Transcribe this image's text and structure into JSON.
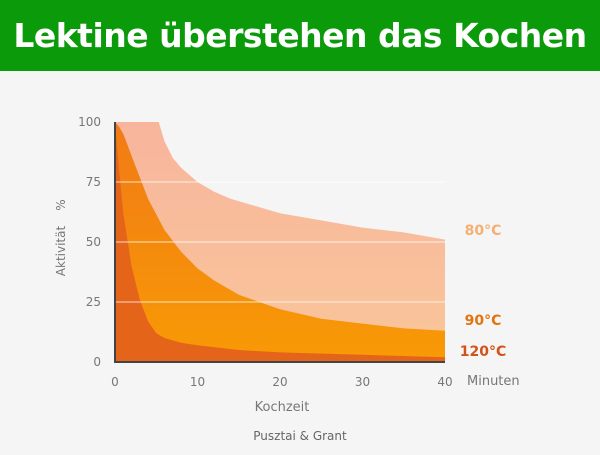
{
  "header": {
    "title": "Lektine überstehen das Kochen"
  },
  "source": "Pusztai & Grant",
  "colors": {
    "banner": "#0a9a0a",
    "s80_top": "#f8b59c",
    "s80_bottom": "#f9c69a",
    "s90_top": "#f17a16",
    "s90_bottom": "#f89a05",
    "s120": "#e4651a",
    "label80": "#f5b071",
    "label90": "#e07510",
    "label120": "#d2521b",
    "axis": "#444444",
    "text": "#777777"
  },
  "chart_data": {
    "type": "area",
    "xlabel": "Kochzeit",
    "xunit": "Minuten",
    "ylabel": "Aktivität",
    "yunit": "%",
    "xlim": [
      0,
      40
    ],
    "ylim": [
      0,
      100
    ],
    "xticks": [
      0,
      10,
      20,
      30,
      40
    ],
    "yticks": [
      0,
      25,
      50,
      75,
      100
    ],
    "grid": true,
    "series": [
      {
        "name": "80°C",
        "x": [
          0,
          5.3,
          6,
          7,
          8,
          10,
          12,
          14,
          16,
          20,
          25,
          30,
          35,
          40
        ],
        "y": [
          100,
          100,
          92,
          85,
          81,
          75,
          71,
          68,
          66,
          62,
          59,
          56,
          54,
          51
        ]
      },
      {
        "name": "90°C",
        "x": [
          0,
          0.5,
          1,
          2,
          3,
          4,
          6,
          8,
          10,
          12,
          15,
          20,
          25,
          30,
          35,
          40
        ],
        "y": [
          100,
          98,
          95,
          86,
          77,
          68,
          55,
          46,
          39,
          34,
          28,
          22,
          18,
          16,
          14,
          13
        ]
      },
      {
        "name": "120°C",
        "x": [
          0,
          0.5,
          1,
          2,
          3,
          4,
          5,
          6,
          8,
          10,
          15,
          20,
          30,
          40
        ],
        "y": [
          100,
          80,
          62,
          40,
          26,
          17,
          12,
          10,
          8,
          7,
          5,
          4,
          3,
          2
        ]
      }
    ]
  }
}
